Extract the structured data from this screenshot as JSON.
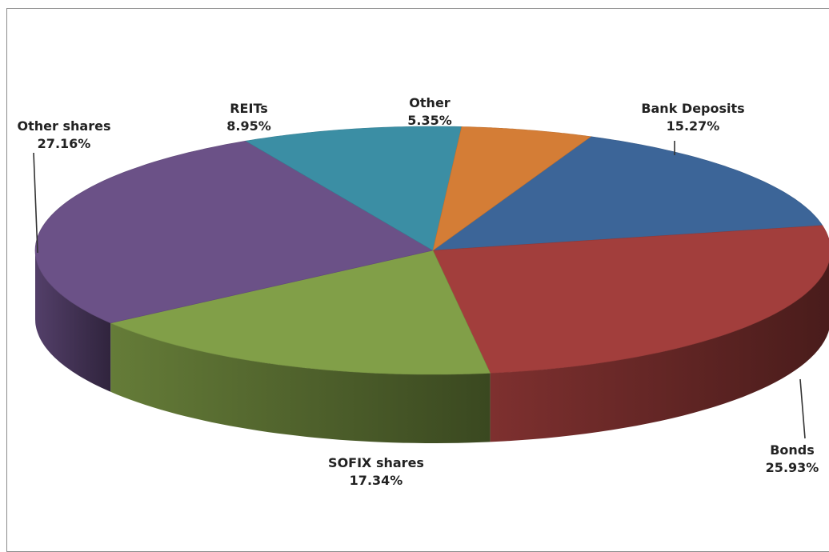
{
  "chart_data": {
    "type": "pie",
    "variant": "3d",
    "title": "",
    "slices": [
      {
        "label": "Bank Deposits",
        "value": 15.27,
        "value_label": "15.27%",
        "color": "#3c6598"
      },
      {
        "label": "Bonds",
        "value": 25.93,
        "value_label": "25.93%",
        "color": "#a23e3c"
      },
      {
        "label": "SOFIX shares",
        "value": 17.34,
        "value_label": "17.34%",
        "color": "#819f48"
      },
      {
        "label": "Other shares",
        "value": 27.16,
        "value_label": "27.16%",
        "color": "#6b5187"
      },
      {
        "label": "REITs",
        "value": 8.95,
        "value_label": "8.95%",
        "color": "#3b8ea4"
      },
      {
        "label": "Other",
        "value": 5.35,
        "value_label": "5.35%",
        "color": "#d47d36"
      }
    ],
    "legend": "none"
  }
}
